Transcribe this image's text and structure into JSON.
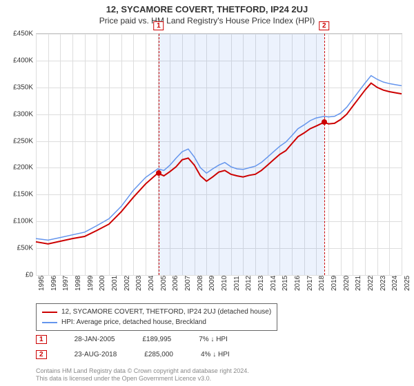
{
  "title": "12, SYCAMORE COVERT, THETFORD, IP24 2UJ",
  "subtitle": "Price paid vs. HM Land Registry's House Price Index (HPI)",
  "chart": {
    "type": "line",
    "ylim": [
      0,
      450000
    ],
    "ytick_step": 50000,
    "yticks": [
      "£0",
      "£50K",
      "£100K",
      "£150K",
      "£200K",
      "£250K",
      "£300K",
      "£350K",
      "£400K",
      "£450K"
    ],
    "xlim": [
      1995,
      2025
    ],
    "xticks": [
      1995,
      1996,
      1997,
      1998,
      1999,
      2000,
      2001,
      2002,
      2003,
      2004,
      2005,
      2006,
      2007,
      2008,
      2009,
      2010,
      2011,
      2012,
      2013,
      2014,
      2015,
      2016,
      2017,
      2018,
      2019,
      2020,
      2021,
      2022,
      2023,
      2024,
      2025
    ],
    "shaded_region": {
      "start": 2005.07,
      "end": 2018.65
    },
    "series_property": {
      "color": "#cc0000",
      "width": 2,
      "points": [
        [
          1995,
          62000
        ],
        [
          1996,
          58000
        ],
        [
          1997,
          63000
        ],
        [
          1998,
          68000
        ],
        [
          1999,
          72000
        ],
        [
          2000,
          83000
        ],
        [
          2001,
          95000
        ],
        [
          2002,
          118000
        ],
        [
          2003,
          145000
        ],
        [
          2004,
          170000
        ],
        [
          2005,
          189995
        ],
        [
          2005.5,
          185000
        ],
        [
          2006,
          193000
        ],
        [
          2006.5,
          202000
        ],
        [
          2007,
          215000
        ],
        [
          2007.5,
          218000
        ],
        [
          2008,
          205000
        ],
        [
          2008.5,
          185000
        ],
        [
          2009,
          175000
        ],
        [
          2009.5,
          183000
        ],
        [
          2010,
          192000
        ],
        [
          2010.5,
          195000
        ],
        [
          2011,
          188000
        ],
        [
          2011.5,
          185000
        ],
        [
          2012,
          183000
        ],
        [
          2012.5,
          186000
        ],
        [
          2013,
          188000
        ],
        [
          2013.5,
          195000
        ],
        [
          2014,
          205000
        ],
        [
          2014.5,
          215000
        ],
        [
          2015,
          225000
        ],
        [
          2015.5,
          232000
        ],
        [
          2016,
          245000
        ],
        [
          2016.5,
          258000
        ],
        [
          2017,
          265000
        ],
        [
          2017.5,
          273000
        ],
        [
          2018,
          278000
        ],
        [
          2018.65,
          285000
        ],
        [
          2019,
          282000
        ],
        [
          2019.5,
          283000
        ],
        [
          2020,
          290000
        ],
        [
          2020.5,
          300000
        ],
        [
          2021,
          315000
        ],
        [
          2021.5,
          330000
        ],
        [
          2022,
          345000
        ],
        [
          2022.5,
          358000
        ],
        [
          2023,
          350000
        ],
        [
          2023.5,
          345000
        ],
        [
          2024,
          342000
        ],
        [
          2024.5,
          340000
        ],
        [
          2025,
          338000
        ]
      ]
    },
    "series_hpi": {
      "color": "#6495ed",
      "width": 1.5,
      "points": [
        [
          1995,
          68000
        ],
        [
          1996,
          65000
        ],
        [
          1997,
          70000
        ],
        [
          1998,
          75000
        ],
        [
          1999,
          80000
        ],
        [
          2000,
          92000
        ],
        [
          2001,
          105000
        ],
        [
          2002,
          128000
        ],
        [
          2003,
          158000
        ],
        [
          2004,
          182000
        ],
        [
          2005,
          198000
        ],
        [
          2005.5,
          195000
        ],
        [
          2006,
          205000
        ],
        [
          2006.5,
          218000
        ],
        [
          2007,
          230000
        ],
        [
          2007.5,
          235000
        ],
        [
          2008,
          220000
        ],
        [
          2008.5,
          200000
        ],
        [
          2009,
          190000
        ],
        [
          2009.5,
          198000
        ],
        [
          2010,
          205000
        ],
        [
          2010.5,
          210000
        ],
        [
          2011,
          202000
        ],
        [
          2011.5,
          198000
        ],
        [
          2012,
          197000
        ],
        [
          2012.5,
          200000
        ],
        [
          2013,
          203000
        ],
        [
          2013.5,
          210000
        ],
        [
          2014,
          220000
        ],
        [
          2014.5,
          230000
        ],
        [
          2015,
          240000
        ],
        [
          2015.5,
          248000
        ],
        [
          2016,
          260000
        ],
        [
          2016.5,
          273000
        ],
        [
          2017,
          280000
        ],
        [
          2017.5,
          288000
        ],
        [
          2018,
          293000
        ],
        [
          2018.65,
          296000
        ],
        [
          2019,
          295000
        ],
        [
          2019.5,
          296000
        ],
        [
          2020,
          302000
        ],
        [
          2020.5,
          313000
        ],
        [
          2021,
          328000
        ],
        [
          2021.5,
          343000
        ],
        [
          2022,
          358000
        ],
        [
          2022.5,
          372000
        ],
        [
          2023,
          365000
        ],
        [
          2023.5,
          360000
        ],
        [
          2024,
          357000
        ],
        [
          2024.5,
          355000
        ],
        [
          2025,
          353000
        ]
      ]
    },
    "sale_points": [
      {
        "x": 2005.07,
        "y": 189995
      },
      {
        "x": 2018.65,
        "y": 285000
      }
    ],
    "markers": [
      {
        "num": "1",
        "x": 2005.07
      },
      {
        "num": "2",
        "x": 2018.65
      }
    ],
    "background_color": "#ffffff",
    "grid_color": "#dddddd"
  },
  "legend": {
    "series1": "12, SYCAMORE COVERT, THETFORD, IP24 2UJ (detached house)",
    "series2": "HPI: Average price, detached house, Breckland"
  },
  "sales": [
    {
      "num": "1",
      "date": "28-JAN-2005",
      "price": "£189,995",
      "delta": "7% ↓ HPI"
    },
    {
      "num": "2",
      "date": "23-AUG-2018",
      "price": "£285,000",
      "delta": "4% ↓ HPI"
    }
  ],
  "footer": {
    "line1": "Contains HM Land Registry data © Crown copyright and database right 2024.",
    "line2": "This data is licensed under the Open Government Licence v3.0."
  }
}
